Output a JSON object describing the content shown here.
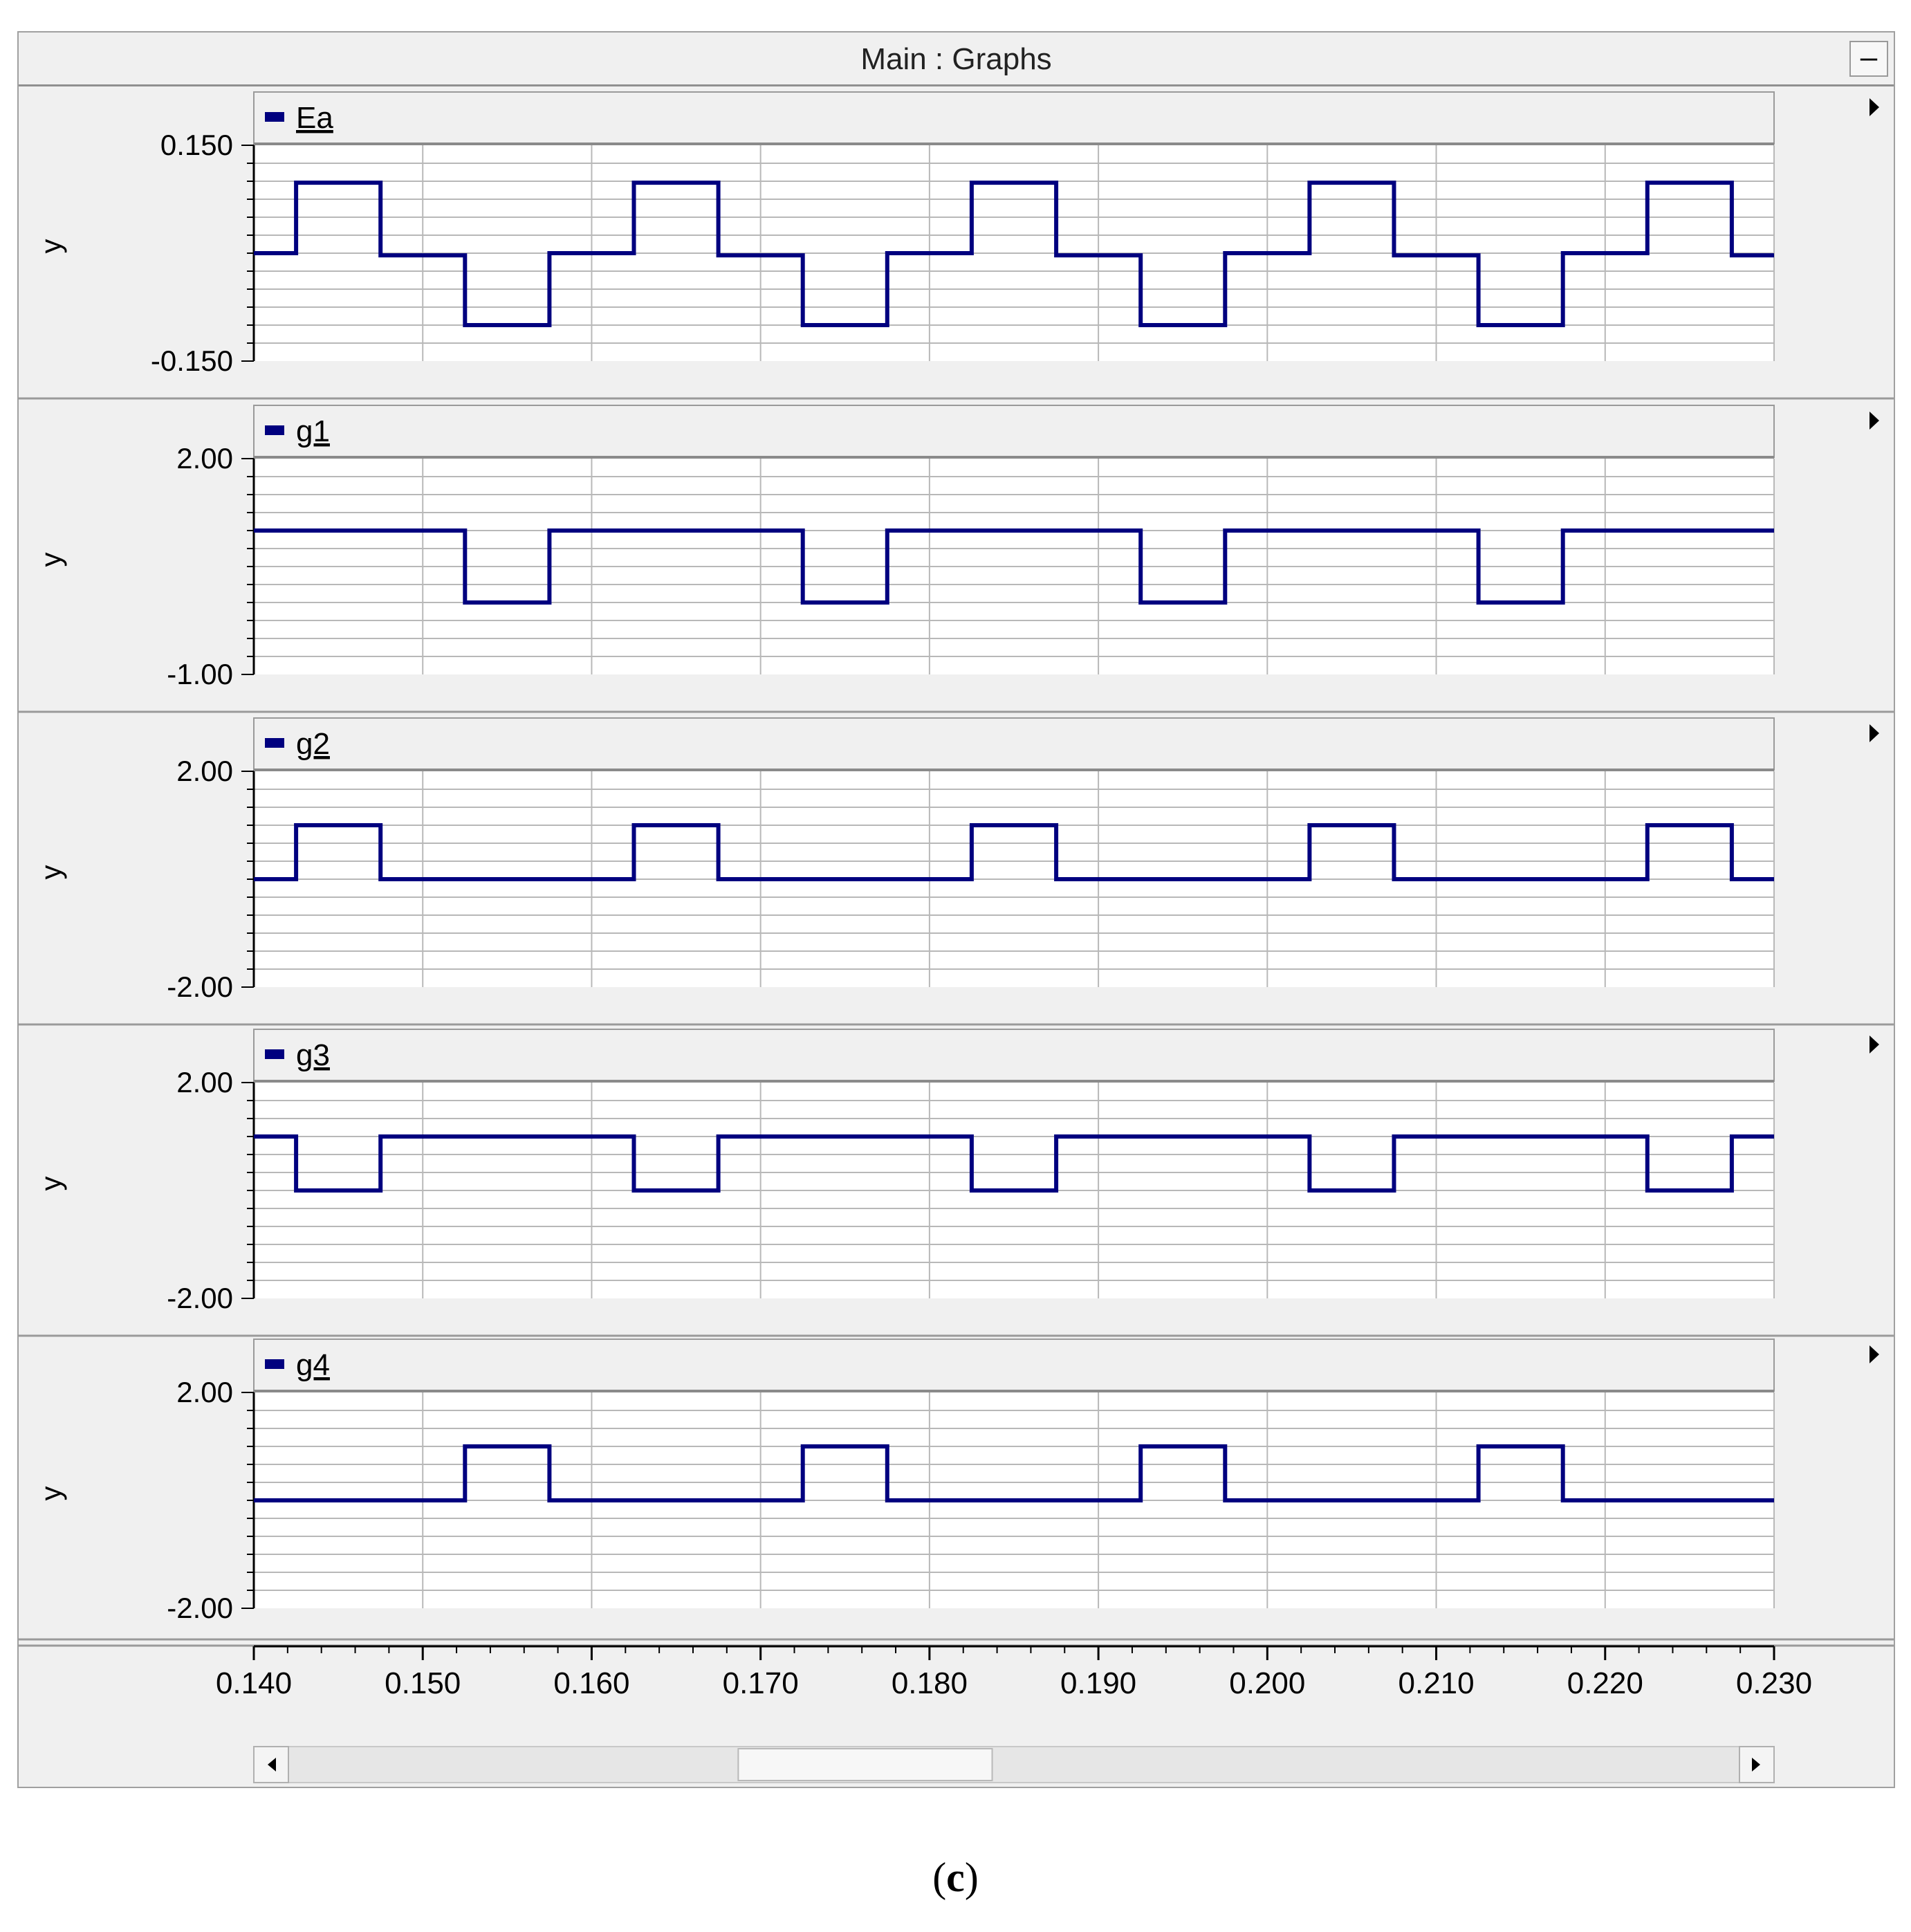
{
  "window": {
    "title": "Main : Graphs",
    "minimize_label": "–"
  },
  "caption": {
    "open": "(",
    "letter": "c",
    "close": ")"
  },
  "colors": {
    "trace": "#00007f",
    "grid": "#b8b8b8",
    "panel_bg": "#f0f0f0",
    "plot_bg": "#ffffff"
  },
  "icons": {
    "panel_menu": "triangle-right-icon",
    "scroll_left": "triangle-left-icon",
    "scroll_right": "triangle-right-icon"
  },
  "chart_data": [
    {
      "type": "line",
      "series": [
        {
          "name": "Ea",
          "x": [
            0.14,
            0.1425,
            0.1425,
            0.1475,
            0.1475,
            0.1525,
            0.1525,
            0.1575,
            0.1575,
            0.1625,
            0.1625,
            0.1675,
            0.1675,
            0.1725,
            0.1725,
            0.1775,
            0.1775,
            0.1825,
            0.1825,
            0.1875,
            0.1875,
            0.1925,
            0.1925,
            0.1975,
            0.1975,
            0.2025,
            0.2025,
            0.2075,
            0.2075,
            0.2125,
            0.2125,
            0.2175,
            0.2175,
            0.2225,
            0.2225,
            0.2275,
            0.2275,
            0.23
          ],
          "y": [
            0,
            0,
            0.098,
            0.098,
            -0.003,
            -0.003,
            -0.1,
            -0.1,
            0,
            0,
            0.098,
            0.098,
            -0.003,
            -0.003,
            -0.1,
            -0.1,
            0,
            0,
            0.098,
            0.098,
            -0.003,
            -0.003,
            -0.1,
            -0.1,
            0,
            0,
            0.098,
            0.098,
            -0.003,
            -0.003,
            -0.1,
            -0.1,
            0,
            0,
            0.098,
            0.098,
            -0.003,
            -0.003
          ]
        }
      ],
      "ylim": [
        -0.15,
        0.15
      ],
      "yticks": [
        "0.150",
        "-0.150"
      ],
      "ylabel": "y",
      "xlim": [
        0.14,
        0.23
      ],
      "grid": true
    },
    {
      "type": "line",
      "series": [
        {
          "name": "g1",
          "x": [
            0.14,
            0.1525,
            0.1525,
            0.1575,
            0.1575,
            0.1725,
            0.1725,
            0.1775,
            0.1775,
            0.1925,
            0.1925,
            0.1975,
            0.1975,
            0.2125,
            0.2125,
            0.2175,
            0.2175,
            0.23
          ],
          "y": [
            1,
            1,
            0,
            0,
            1,
            1,
            0,
            0,
            1,
            1,
            0,
            0,
            1,
            1,
            0,
            0,
            1,
            1
          ]
        }
      ],
      "ylim": [
        -1.0,
        2.0
      ],
      "yticks": [
        "2.00",
        "-1.00"
      ],
      "ylabel": "y",
      "xlim": [
        0.14,
        0.23
      ],
      "grid": true
    },
    {
      "type": "line",
      "series": [
        {
          "name": "g2",
          "x": [
            0.14,
            0.1425,
            0.1425,
            0.1475,
            0.1475,
            0.1625,
            0.1625,
            0.1675,
            0.1675,
            0.1825,
            0.1825,
            0.1875,
            0.1875,
            0.2025,
            0.2025,
            0.2075,
            0.2075,
            0.2225,
            0.2225,
            0.2275,
            0.2275,
            0.23
          ],
          "y": [
            0,
            0,
            1,
            1,
            0,
            0,
            1,
            1,
            0,
            0,
            1,
            1,
            0,
            0,
            1,
            1,
            0,
            0,
            1,
            1,
            0,
            0
          ]
        }
      ],
      "ylim": [
        -2.0,
        2.0
      ],
      "yticks": [
        "2.00",
        "-2.00"
      ],
      "ylabel": "y",
      "xlim": [
        0.14,
        0.23
      ],
      "grid": true
    },
    {
      "type": "line",
      "series": [
        {
          "name": "g3",
          "x": [
            0.14,
            0.1425,
            0.1425,
            0.1475,
            0.1475,
            0.1625,
            0.1625,
            0.1675,
            0.1675,
            0.1825,
            0.1825,
            0.1875,
            0.1875,
            0.2025,
            0.2025,
            0.2075,
            0.2075,
            0.2225,
            0.2225,
            0.2275,
            0.2275,
            0.23
          ],
          "y": [
            1,
            1,
            0,
            0,
            1,
            1,
            0,
            0,
            1,
            1,
            0,
            0,
            1,
            1,
            0,
            0,
            1,
            1,
            0,
            0,
            1,
            1
          ]
        }
      ],
      "ylim": [
        -2.0,
        2.0
      ],
      "yticks": [
        "2.00",
        "-2.00"
      ],
      "ylabel": "y",
      "xlim": [
        0.14,
        0.23
      ],
      "grid": true
    },
    {
      "type": "line",
      "series": [
        {
          "name": "g4",
          "x": [
            0.14,
            0.1525,
            0.1525,
            0.1575,
            0.1575,
            0.1725,
            0.1725,
            0.1775,
            0.1775,
            0.1925,
            0.1925,
            0.1975,
            0.1975,
            0.2125,
            0.2125,
            0.2175,
            0.2175,
            0.23
          ],
          "y": [
            0,
            0,
            1,
            1,
            0,
            0,
            1,
            1,
            0,
            0,
            1,
            1,
            0,
            0,
            1,
            1,
            0,
            0
          ]
        }
      ],
      "ylim": [
        -2.0,
        2.0
      ],
      "yticks": [
        "2.00",
        "-2.00"
      ],
      "ylabel": "y",
      "xlim": [
        0.14,
        0.23
      ],
      "grid": true
    }
  ],
  "x_axis": {
    "ticks": [
      "0.140",
      "0.150",
      "0.160",
      "0.170",
      "0.180",
      "0.190",
      "0.200",
      "0.210",
      "0.220",
      "0.230"
    ]
  },
  "scrollbar": {
    "visible_start": 0.31,
    "visible_end": 0.485
  }
}
